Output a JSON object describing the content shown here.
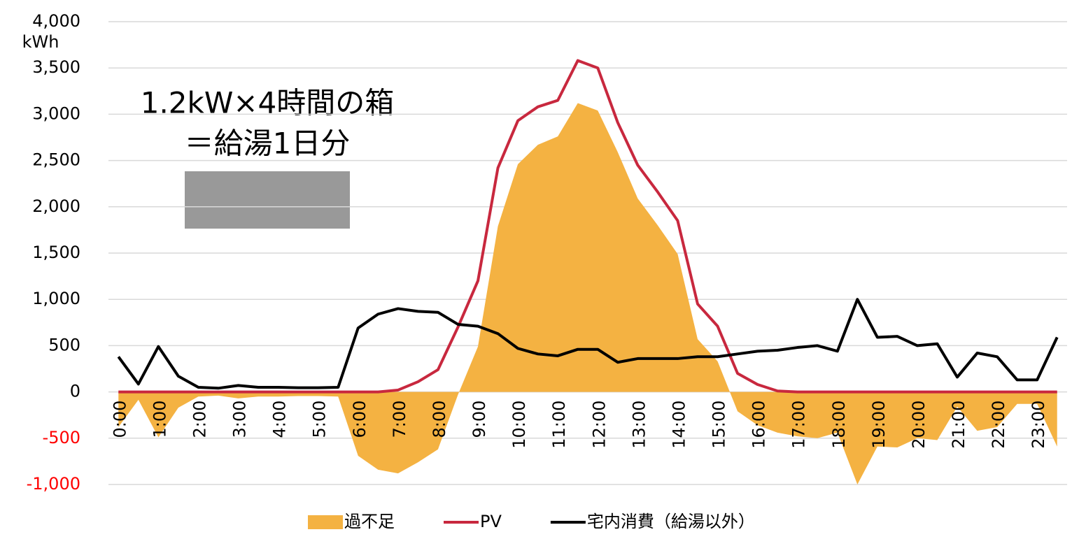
{
  "chart_data": {
    "type": "line_area",
    "y_unit": "kWh",
    "annotations": [
      "1.2kW×4時間の箱",
      "＝給湯1日分"
    ],
    "categories": [
      "0:00",
      null,
      "1:00",
      null,
      "2:00",
      null,
      "3:00",
      null,
      "4:00",
      null,
      "5:00",
      null,
      "6:00",
      null,
      "7:00",
      null,
      "8:00",
      null,
      "9:00",
      null,
      "10:00",
      null,
      "11:00",
      null,
      "12:00",
      null,
      "13:00",
      null,
      "14:00",
      null,
      "15:00",
      null,
      "16:00",
      null,
      "17:00",
      null,
      "18:00",
      null,
      "19:00",
      null,
      "20:00",
      null,
      "21:00",
      null,
      "22:00",
      null,
      "23:00",
      null
    ],
    "series": [
      {
        "name": "過不足",
        "kind": "area",
        "color": "#f4b242",
        "values": [
          -380,
          -85,
          -490,
          -170,
          -50,
          -40,
          -70,
          -50,
          -50,
          -45,
          -45,
          -50,
          -690,
          -840,
          -880,
          -760,
          -620,
          -30,
          490,
          1790,
          2460,
          2670,
          2760,
          3120,
          3040,
          2590,
          2090,
          1800,
          1490,
          570,
          330,
          -210,
          -360,
          -440,
          -480,
          -500,
          -440,
          -1000,
          -590,
          -600,
          -500,
          -520,
          -160,
          -420,
          -380,
          -130,
          -130,
          -590
        ]
      },
      {
        "name": "PV",
        "kind": "line",
        "color": "#c8283e",
        "values": [
          0,
          0,
          0,
          0,
          0,
          0,
          0,
          0,
          0,
          0,
          0,
          0,
          0,
          0,
          20,
          110,
          240,
          700,
          1200,
          2420,
          2930,
          3080,
          3150,
          3580,
          3500,
          2910,
          2450,
          2160,
          1850,
          950,
          710,
          200,
          80,
          10,
          0,
          0,
          0,
          0,
          0,
          0,
          0,
          0,
          0,
          0,
          0,
          0,
          0,
          0
        ]
      },
      {
        "name": "宅内消費（給湯以外）",
        "kind": "line",
        "color": "#000000",
        "values": [
          380,
          85,
          490,
          170,
          50,
          40,
          70,
          50,
          50,
          45,
          45,
          50,
          690,
          840,
          900,
          870,
          860,
          730,
          710,
          630,
          470,
          410,
          390,
          460,
          460,
          320,
          360,
          360,
          360,
          380,
          380,
          410,
          440,
          450,
          480,
          500,
          440,
          1000,
          590,
          600,
          500,
          520,
          160,
          420,
          380,
          130,
          130,
          590
        ]
      }
    ],
    "ylim": [
      -1000,
      4000
    ],
    "yticks": [
      {
        "value": -1000,
        "label": "-1,000"
      },
      -500,
      0,
      {
        "value": 500,
        "label": "500"
      },
      {
        "value": 1000,
        "label": "1,000"
      },
      {
        "value": 1500,
        "label": "1,500"
      },
      {
        "value": 2000,
        "label": "2,000"
      },
      {
        "value": 2500,
        "label": "2,500"
      },
      {
        "value": 3000,
        "label": "3,000"
      },
      {
        "value": 3500,
        "label": "3,500"
      },
      {
        "value": 4000,
        "label": "4,000"
      }
    ],
    "negative_tick_color": "#ff0000",
    "grid": true,
    "legend": "bottom"
  }
}
